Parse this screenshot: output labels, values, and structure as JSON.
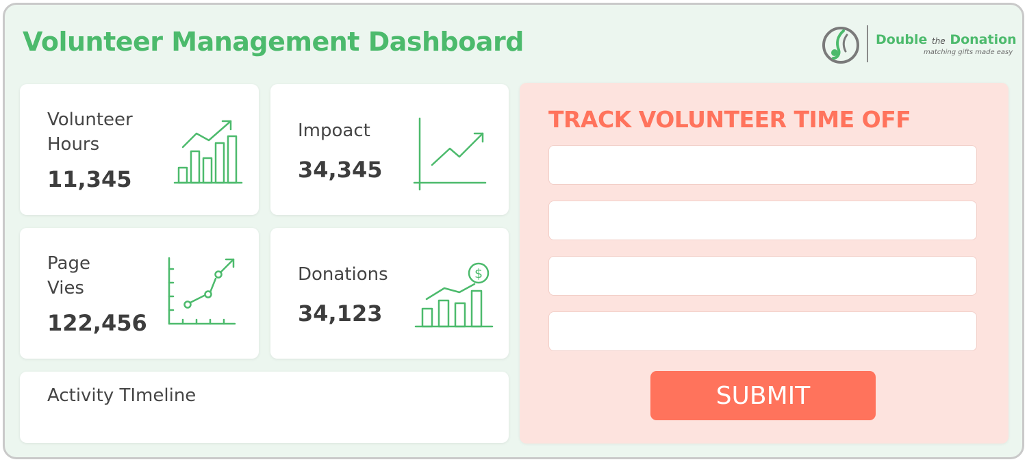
{
  "header": {
    "title": "Volunteer Management Dashboard"
  },
  "logo": {
    "brand_double": "Double",
    "brand_the": "the",
    "brand_donation": "Donation",
    "tagline": "matching gifts made easy"
  },
  "stats": [
    {
      "label": "Volunteer\nHours",
      "value": "11,345",
      "icon": "bar-chart-trend-icon"
    },
    {
      "label": "Impoact",
      "value": "34,345",
      "icon": "line-chart-icon"
    },
    {
      "label": "Page\nVies",
      "value": "122,456",
      "icon": "scatter-trend-icon"
    },
    {
      "label": "Donations",
      "value": "34,123",
      "icon": "dollar-bar-chart-icon"
    }
  ],
  "timeline": {
    "label": "Activity TImeline"
  },
  "form": {
    "title": "TRACK VOLUNTEER TIME OFF",
    "inputs": [
      {
        "value": "",
        "placeholder": ""
      },
      {
        "value": "",
        "placeholder": ""
      },
      {
        "value": "",
        "placeholder": ""
      },
      {
        "value": "",
        "placeholder": ""
      }
    ],
    "submit_label": "SUBMIT"
  },
  "colors": {
    "accent_green": "#4cba6c",
    "accent_coral": "#ff735c",
    "form_background": "#fde3de",
    "page_background": "#ecf6ef"
  }
}
